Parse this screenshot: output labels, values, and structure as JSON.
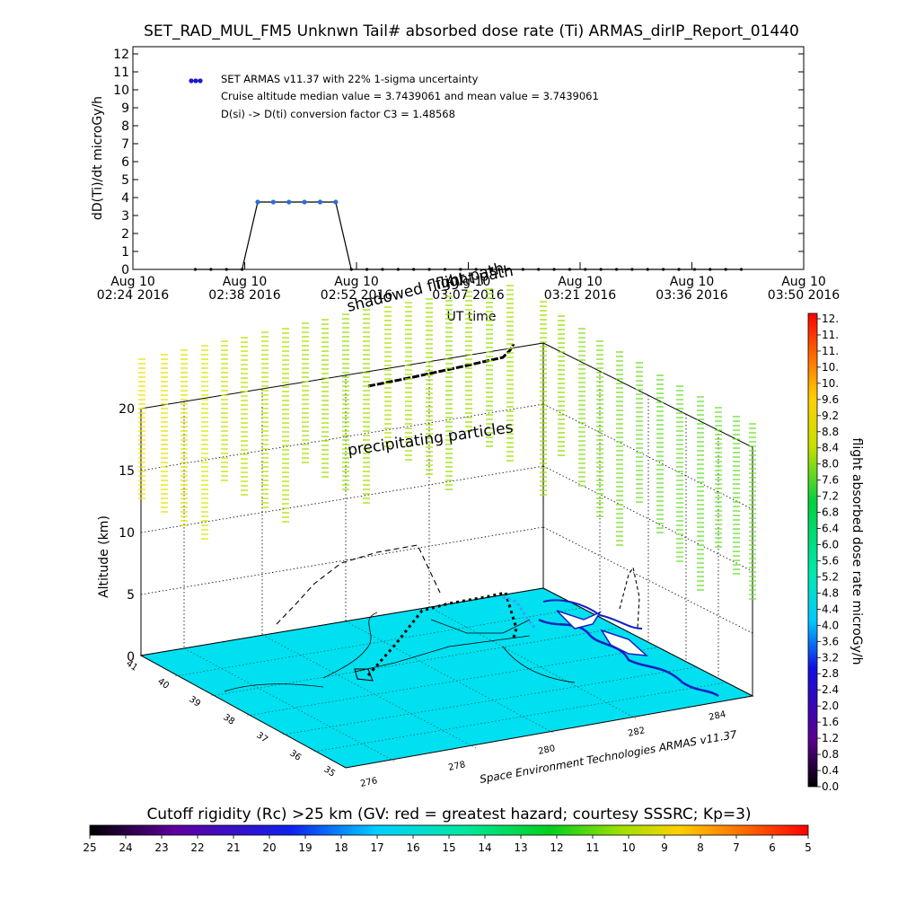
{
  "chart_data": [
    {
      "type": "line",
      "title": "SET_RAD_MUL_FM5 Unknwn Tail#  absorbed dose rate (Ti) ARMAS_dirIP_Report_01440",
      "xlabel": "UT time",
      "ylabel": "dD(Ti)/dt microGy/h",
      "ylim": [
        0,
        12
      ],
      "yticks": [
        "0",
        "1",
        "2",
        "3",
        "4",
        "5",
        "6",
        "7",
        "8",
        "9",
        "10",
        "11",
        "12"
      ],
      "xticks": [
        {
          "date": "Aug 10",
          "time": "02:24 2016"
        },
        {
          "date": "Aug 10",
          "time": "02:38 2016"
        },
        {
          "date": "Aug 10",
          "time": "02:52 2016"
        },
        {
          "date": "Aug 10",
          "time": "03:07 2016"
        },
        {
          "date": "Aug 10",
          "time": "03:21 2016"
        },
        {
          "date": "Aug 10",
          "time": "03:36 2016"
        },
        {
          "date": "Aug 10",
          "time": "03:50 2016"
        }
      ],
      "xrange_minutes": [
        0,
        86
      ],
      "legend": {
        "placement": "top-left",
        "lines": [
          "SET ARMAS v11.37 with 22% 1-sigma uncertainty",
          "Cruise altitude median value = 3.7439061 and mean value = 3.7439061",
          "D(si) -> D(ti) conversion factor C3 = 1.48568"
        ],
        "marker_color": "#1a1ad0"
      },
      "series": [
        {
          "color": "#2a6fd6",
          "x_minutes": [
            8,
            10,
            12,
            14,
            16,
            18,
            20,
            22,
            24,
            26,
            28,
            30,
            32,
            34,
            36,
            38,
            40,
            42,
            44,
            46,
            48,
            50,
            52,
            54,
            56,
            58,
            60,
            62,
            64,
            66,
            68,
            70,
            72,
            74,
            76,
            78
          ],
          "values": [
            0,
            0,
            0,
            0,
            3.75,
            3.75,
            3.75,
            3.75,
            3.75,
            3.75,
            0,
            0,
            0,
            0,
            0,
            0,
            0,
            0,
            0,
            0,
            0,
            0,
            0,
            0,
            0,
            0,
            0,
            0,
            0,
            0,
            0,
            0,
            0,
            0,
            0,
            0
          ]
        }
      ]
    },
    {
      "type": "scatter",
      "title": "",
      "ylabel": "Altitude (km)",
      "zticks": [
        "0",
        "5",
        "10",
        "15",
        "20"
      ],
      "lat_ticks": [
        "35",
        "36",
        "37",
        "38",
        "39",
        "40",
        "41"
      ],
      "lon_ticks": [
        "276",
        "278",
        "280",
        "282",
        "284"
      ],
      "annotations": [
        "flight path",
        "shadowed flight path",
        "precipitating particles"
      ],
      "credit": "Space Environment Technologies ARMAS v11.37",
      "ground_color": "#00e0f0",
      "flight_path_color": "#000000"
    },
    {
      "type": "heatmap",
      "label": "flight absorbed dose rate microGy/h",
      "ticks": [
        "0.0",
        "0.4",
        "0.8",
        "1.2",
        "1.6",
        "2.0",
        "2.4",
        "2.8",
        "3.2",
        "3.6",
        "4.0",
        "4.4",
        "4.8",
        "5.2",
        "5.6",
        "6.0",
        "6.4",
        "6.8",
        "7.2",
        "7.6",
        "8.0",
        "8.4",
        "8.8",
        "9.2",
        "9.6",
        "10.",
        "10.",
        "11.",
        "11.",
        "12."
      ]
    },
    {
      "type": "heatmap",
      "label": "Cutoff rigidity (Rc) >25 km (GV: red = greatest hazard; courtesy SSSRC; Kp=3)",
      "ticks": [
        "25",
        "24",
        "23",
        "22",
        "21",
        "20",
        "19",
        "18",
        "17",
        "16",
        "15",
        "14",
        "13",
        "12",
        "11",
        "10",
        "9",
        "8",
        "7",
        "6",
        "5"
      ]
    }
  ]
}
